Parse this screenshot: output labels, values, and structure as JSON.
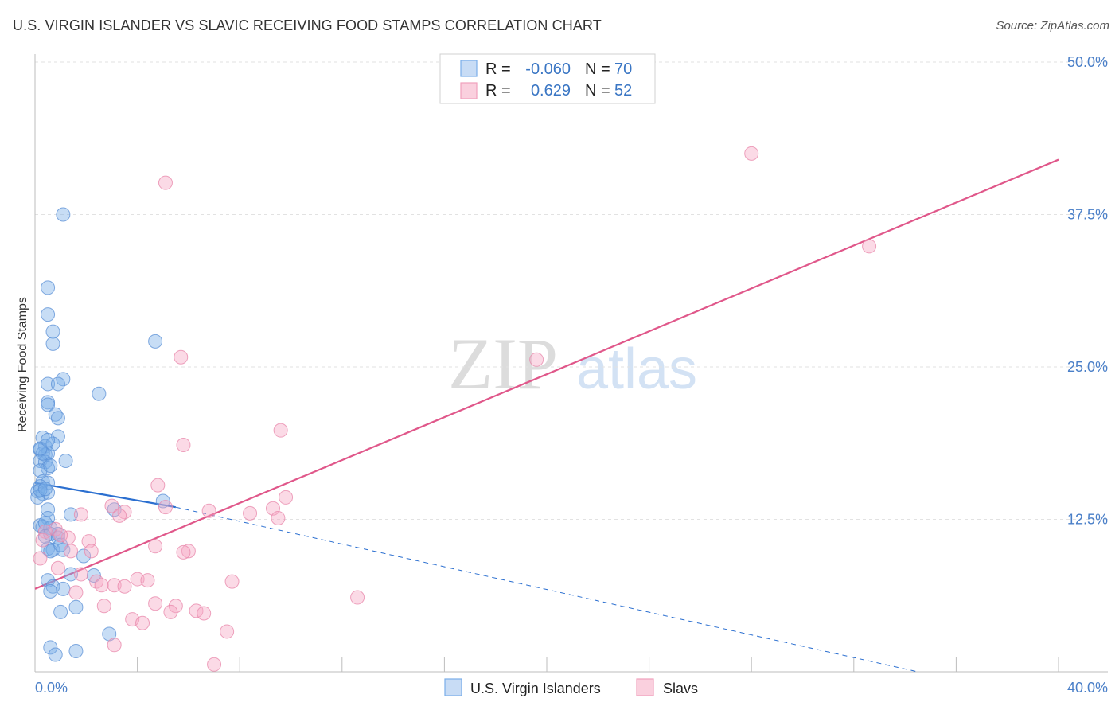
{
  "title": "U.S. VIRGIN ISLANDER VS SLAVIC RECEIVING FOOD STAMPS CORRELATION CHART",
  "source": "Source: ZipAtlas.com",
  "watermark": {
    "zip": "ZIP",
    "atlas": "atlas"
  },
  "chart_data": {
    "type": "scatter",
    "ylabel": "Receiving Food Stamps",
    "xlim": [
      0,
      40
    ],
    "ylim": [
      0,
      50
    ],
    "x_tick_labels": [
      {
        "value": 0,
        "label": "0.0%"
      },
      {
        "value": 40,
        "label": "40.0%"
      }
    ],
    "y_tick_labels": [
      {
        "value": 12.5,
        "label": "12.5%"
      },
      {
        "value": 25,
        "label": "25.0%"
      },
      {
        "value": 37.5,
        "label": "37.5%"
      },
      {
        "value": 50,
        "label": "50.0%"
      }
    ],
    "legend": {
      "rows": [
        {
          "r_label": "R =",
          "r_value": "-0.060",
          "n_label": "N =",
          "n_value": "70"
        },
        {
          "r_label": "R =",
          "r_value": "0.629",
          "n_label": "N =",
          "n_value": "52"
        }
      ]
    },
    "series": [
      {
        "name": "U.S. Virgin Islanders",
        "color": "#7aaee8",
        "stroke": "#5a8fd6",
        "trend": {
          "x0": 0,
          "y0": 15.5,
          "x1": 5.5,
          "y1": 13.5,
          "dash_x1": 34.5,
          "dash_y1": 0
        },
        "trend_color": "#2b6fd0",
        "points": [
          [
            1.1,
            37.5
          ],
          [
            0.5,
            31.5
          ],
          [
            0.5,
            29.3
          ],
          [
            0.7,
            27.9
          ],
          [
            0.7,
            26.9
          ],
          [
            4.7,
            27.1
          ],
          [
            1.1,
            24.0
          ],
          [
            0.5,
            23.6
          ],
          [
            0.9,
            23.6
          ],
          [
            2.5,
            22.8
          ],
          [
            0.5,
            22.1
          ],
          [
            0.5,
            21.9
          ],
          [
            0.8,
            21.1
          ],
          [
            0.9,
            20.8
          ],
          [
            0.3,
            19.2
          ],
          [
            0.9,
            19.3
          ],
          [
            0.4,
            18.5
          ],
          [
            0.7,
            18.7
          ],
          [
            0.2,
            18.2
          ],
          [
            0.4,
            17.8
          ],
          [
            0.5,
            17.9
          ],
          [
            0.2,
            17.3
          ],
          [
            0.4,
            17.2
          ],
          [
            1.2,
            17.3
          ],
          [
            0.5,
            16.7
          ],
          [
            0.2,
            16.5
          ],
          [
            0.6,
            16.9
          ],
          [
            0.3,
            15.6
          ],
          [
            0.5,
            15.5
          ],
          [
            0.2,
            15.2
          ],
          [
            0.1,
            14.8
          ],
          [
            0.3,
            14.6
          ],
          [
            0.5,
            14.7
          ],
          [
            0.1,
            14.3
          ],
          [
            5.0,
            14.0
          ],
          [
            0.5,
            13.3
          ],
          [
            3.1,
            13.3
          ],
          [
            1.4,
            12.9
          ],
          [
            0.5,
            12.6
          ],
          [
            0.2,
            12.0
          ],
          [
            0.3,
            11.9
          ],
          [
            0.6,
            11.8
          ],
          [
            0.4,
            11.1
          ],
          [
            0.6,
            11.3
          ],
          [
            0.9,
            11.3
          ],
          [
            0.5,
            10.1
          ],
          [
            0.7,
            10.0
          ],
          [
            1.1,
            10.0
          ],
          [
            1.9,
            9.5
          ],
          [
            1.4,
            8.0
          ],
          [
            2.3,
            7.9
          ],
          [
            0.5,
            7.5
          ],
          [
            0.7,
            7.0
          ],
          [
            0.6,
            6.6
          ],
          [
            1.1,
            6.8
          ],
          [
            1.6,
            5.3
          ],
          [
            1.0,
            4.9
          ],
          [
            2.9,
            3.1
          ],
          [
            0.6,
            2.0
          ],
          [
            0.8,
            1.4
          ],
          [
            1.6,
            1.7
          ],
          [
            0.2,
            14.9
          ],
          [
            0.4,
            12.2
          ],
          [
            0.3,
            17.9
          ],
          [
            0.6,
            9.9
          ],
          [
            0.9,
            11.0
          ],
          [
            0.2,
            18.3
          ],
          [
            0.4,
            15.0
          ],
          [
            0.5,
            19.0
          ],
          [
            1.0,
            10.4
          ]
        ]
      },
      {
        "name": "Slavs",
        "color": "#f5a8c4",
        "stroke": "#e886aa",
        "trend": {
          "x0": 0,
          "y0": 6.8,
          "x1": 40,
          "y1": 42.0
        },
        "trend_color": "#e0578a",
        "points": [
          [
            28.0,
            42.5
          ],
          [
            5.1,
            40.1
          ],
          [
            32.6,
            34.9
          ],
          [
            19.6,
            25.6
          ],
          [
            5.7,
            25.8
          ],
          [
            9.6,
            19.8
          ],
          [
            5.8,
            18.6
          ],
          [
            4.8,
            15.3
          ],
          [
            9.8,
            14.3
          ],
          [
            3.0,
            13.6
          ],
          [
            3.5,
            13.1
          ],
          [
            5.1,
            13.5
          ],
          [
            6.8,
            13.2
          ],
          [
            8.4,
            13.0
          ],
          [
            9.3,
            13.4
          ],
          [
            9.5,
            12.6
          ],
          [
            3.3,
            12.8
          ],
          [
            1.8,
            12.9
          ],
          [
            0.4,
            11.5
          ],
          [
            0.8,
            11.7
          ],
          [
            1.3,
            11.0
          ],
          [
            0.3,
            10.8
          ],
          [
            2.1,
            10.7
          ],
          [
            4.7,
            10.3
          ],
          [
            6.0,
            9.9
          ],
          [
            5.8,
            9.8
          ],
          [
            2.2,
            9.9
          ],
          [
            1.4,
            9.9
          ],
          [
            0.2,
            9.3
          ],
          [
            0.9,
            8.5
          ],
          [
            1.8,
            8.0
          ],
          [
            2.4,
            7.4
          ],
          [
            3.1,
            7.1
          ],
          [
            4.0,
            7.6
          ],
          [
            4.4,
            7.5
          ],
          [
            7.7,
            7.4
          ],
          [
            1.6,
            6.5
          ],
          [
            2.6,
            7.1
          ],
          [
            3.5,
            7.0
          ],
          [
            12.6,
            6.1
          ],
          [
            4.7,
            5.6
          ],
          [
            5.5,
            5.4
          ],
          [
            2.7,
            5.4
          ],
          [
            6.3,
            5.0
          ],
          [
            6.6,
            4.8
          ],
          [
            5.3,
            4.9
          ],
          [
            3.8,
            4.3
          ],
          [
            4.2,
            4.0
          ],
          [
            7.5,
            3.3
          ],
          [
            3.1,
            2.2
          ],
          [
            7.0,
            0.6
          ],
          [
            1.0,
            11.2
          ]
        ]
      }
    ]
  }
}
